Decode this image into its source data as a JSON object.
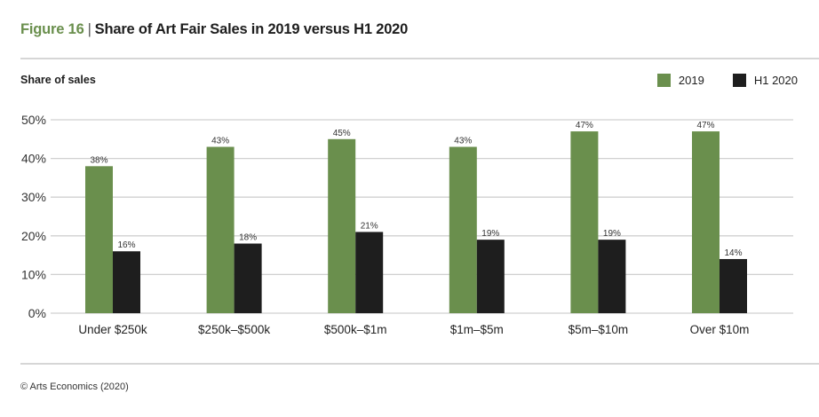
{
  "header": {
    "figure_label": "Figure 16",
    "separator": "|",
    "title": "Share of Art Fair Sales in 2019 versus H1 2020"
  },
  "footer": {
    "source": "© Arts Economics (2020)"
  },
  "colors": {
    "series_2019": "#6a8f4d",
    "series_h1_2020": "#1e1e1e",
    "gridline": "#d0d0d0",
    "figure_label": "#6a8f4d"
  },
  "chart_data": {
    "type": "bar",
    "title": "Share of Art Fair Sales in 2019 versus H1 2020",
    "xlabel": "",
    "ylabel": "Share of sales",
    "ylim": [
      0,
      50
    ],
    "yticks": [
      0,
      10,
      20,
      30,
      40,
      50
    ],
    "ytick_labels": [
      "0%",
      "10%",
      "20%",
      "30%",
      "40%",
      "50%"
    ],
    "grid": true,
    "legend_position": "top-right",
    "categories": [
      "Under $250k",
      "$250k–$500k",
      "$500k–$1m",
      "$1m–$5m",
      "$5m–$10m",
      "Over $10m"
    ],
    "series": [
      {
        "name": "2019",
        "color": "#6a8f4d",
        "values": [
          38,
          43,
          45,
          43,
          47,
          47
        ],
        "labels": [
          "38%",
          "43%",
          "45%",
          "43%",
          "47%",
          "47%"
        ]
      },
      {
        "name": "H1 2020",
        "color": "#1e1e1e",
        "values": [
          16,
          18,
          21,
          19,
          19,
          14
        ],
        "labels": [
          "16%",
          "18%",
          "21%",
          "19%",
          "19%",
          "14%"
        ]
      }
    ]
  }
}
